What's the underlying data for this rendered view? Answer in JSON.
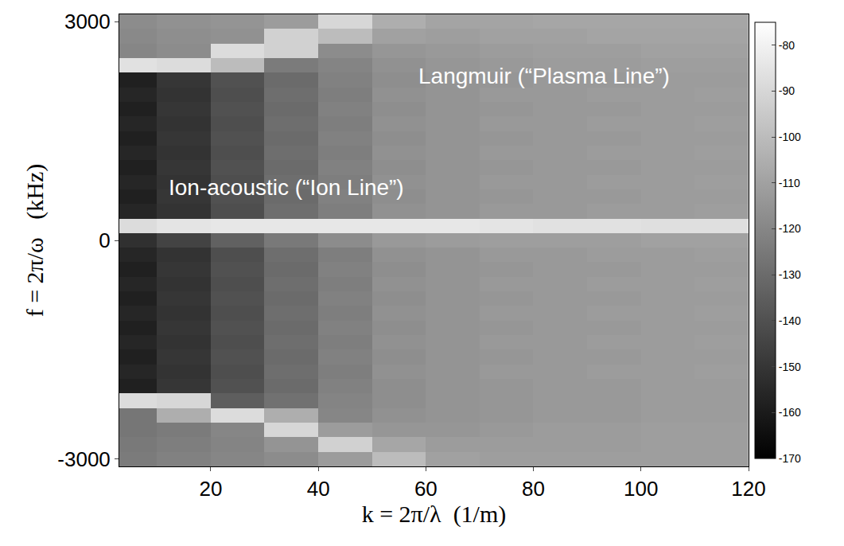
{
  "chart_data": {
    "type": "heatmap",
    "x_label": "k = 2π/λ  (1/m)",
    "y_label": "f = 2π/ω   (kHz)",
    "annotations": [
      "Langmuir (“Plasma Line”)",
      "Ion-acoustic (“Ion Line”)"
    ],
    "x": [
      5,
      15,
      25,
      35,
      45,
      55,
      65,
      75,
      85,
      95,
      105,
      115
    ],
    "y": [
      -3000,
      -2800,
      -2600,
      -2400,
      -2200,
      -2000,
      -1800,
      -1600,
      -1400,
      -1200,
      -1000,
      -800,
      -600,
      -400,
      -200,
      0,
      200,
      400,
      600,
      800,
      1000,
      1200,
      1400,
      1600,
      1800,
      2000,
      2200,
      2400,
      2600,
      2800,
      3000
    ],
    "z": [
      [
        -124,
        -122,
        -120,
        -118,
        -112,
        -100,
        -110,
        -111,
        -111,
        -111,
        -111,
        -111
      ],
      [
        -125,
        -123,
        -121,
        -115,
        -92,
        -108,
        -112,
        -112,
        -112,
        -112,
        -111,
        -111
      ],
      [
        -126,
        -124,
        -120,
        -90,
        -112,
        -114,
        -114,
        -113,
        -112,
        -112,
        -111,
        -111
      ],
      [
        -126,
        -105,
        -88,
        -105,
        -120,
        -116,
        -115,
        -114,
        -113,
        -113,
        -112,
        -112
      ],
      [
        -88,
        -90,
        -135,
        -128,
        -121,
        -117,
        -115,
        -114,
        -113,
        -113,
        -112,
        -112
      ],
      [
        -158,
        -150,
        -140,
        -130,
        -122,
        -117,
        -115,
        -114,
        -113,
        -113,
        -112,
        -112
      ],
      [
        -156,
        -151,
        -141,
        -129,
        -123,
        -116,
        -115,
        -113,
        -113,
        -112,
        -112,
        -111
      ],
      [
        -158,
        -150,
        -140,
        -130,
        -122,
        -117,
        -115,
        -114,
        -113,
        -113,
        -112,
        -112
      ],
      [
        -156,
        -151,
        -141,
        -129,
        -123,
        -116,
        -115,
        -113,
        -113,
        -112,
        -112,
        -111
      ],
      [
        -158,
        -150,
        -140,
        -130,
        -122,
        -117,
        -115,
        -114,
        -113,
        -113,
        -112,
        -112
      ],
      [
        -156,
        -151,
        -141,
        -129,
        -123,
        -116,
        -115,
        -113,
        -113,
        -112,
        -112,
        -111
      ],
      [
        -158,
        -150,
        -140,
        -130,
        -122,
        -117,
        -115,
        -114,
        -113,
        -113,
        -112,
        -112
      ],
      [
        -156,
        -151,
        -141,
        -129,
        -123,
        -116,
        -115,
        -113,
        -113,
        -112,
        -112,
        -111
      ],
      [
        -158,
        -150,
        -140,
        -130,
        -122,
        -117,
        -115,
        -114,
        -113,
        -113,
        -112,
        -112
      ],
      [
        -156,
        -151,
        -141,
        -129,
        -123,
        -116,
        -115,
        -113,
        -113,
        -112,
        -112,
        -111
      ],
      [
        -152,
        -145,
        -134,
        -125,
        -118,
        -113,
        -112,
        -111,
        -111,
        -111,
        -110,
        -110
      ],
      [
        -88,
        -85,
        -84,
        -84,
        -84,
        -84,
        -84,
        -85,
        -86,
        -86,
        -87,
        -87
      ],
      [
        -156,
        -151,
        -141,
        -129,
        -123,
        -116,
        -115,
        -113,
        -113,
        -112,
        -112,
        -111
      ],
      [
        -158,
        -150,
        -140,
        -130,
        -122,
        -117,
        -115,
        -114,
        -113,
        -113,
        -112,
        -112
      ],
      [
        -156,
        -151,
        -141,
        -129,
        -123,
        -116,
        -115,
        -113,
        -113,
        -112,
        -112,
        -111
      ],
      [
        -158,
        -150,
        -140,
        -130,
        -122,
        -117,
        -115,
        -114,
        -113,
        -113,
        -112,
        -112
      ],
      [
        -156,
        -151,
        -141,
        -129,
        -123,
        -116,
        -115,
        -113,
        -113,
        -112,
        -112,
        -111
      ],
      [
        -158,
        -150,
        -140,
        -130,
        -122,
        -117,
        -115,
        -114,
        -113,
        -113,
        -112,
        -112
      ],
      [
        -156,
        -151,
        -141,
        -129,
        -123,
        -116,
        -115,
        -113,
        -113,
        -112,
        -112,
        -111
      ],
      [
        -158,
        -150,
        -140,
        -130,
        -122,
        -117,
        -115,
        -114,
        -113,
        -113,
        -112,
        -112
      ],
      [
        -156,
        -151,
        -141,
        -129,
        -123,
        -116,
        -115,
        -113,
        -113,
        -112,
        -112,
        -111
      ],
      [
        -158,
        -150,
        -140,
        -130,
        -122,
        -117,
        -115,
        -114,
        -113,
        -113,
        -112,
        -112
      ],
      [
        -86,
        -88,
        -100,
        -124,
        -121,
        -116,
        -114,
        -113,
        -112,
        -112,
        -111,
        -111
      ],
      [
        -120,
        -118,
        -88,
        -92,
        -118,
        -114,
        -113,
        -112,
        -111,
        -111,
        -110,
        -110
      ],
      [
        -119,
        -117,
        -116,
        -92,
        -100,
        -110,
        -111,
        -110,
        -110,
        -109,
        -109,
        -109
      ],
      [
        -118,
        -116,
        -115,
        -112,
        -90,
        -105,
        -109,
        -109,
        -108,
        -108,
        -108,
        -108
      ]
    ],
    "xlim": [
      3,
      120
    ],
    "ylim": [
      -3100,
      3100
    ],
    "xticks": [
      20,
      40,
      60,
      80,
      100,
      120
    ],
    "yticks": [
      -3000,
      0,
      3000
    ],
    "colorbar_range": [
      -170,
      -75
    ],
    "colorbar_ticks": [
      -170,
      -160,
      -150,
      -140,
      -130,
      -120,
      -110,
      -100,
      -90,
      -80
    ]
  }
}
